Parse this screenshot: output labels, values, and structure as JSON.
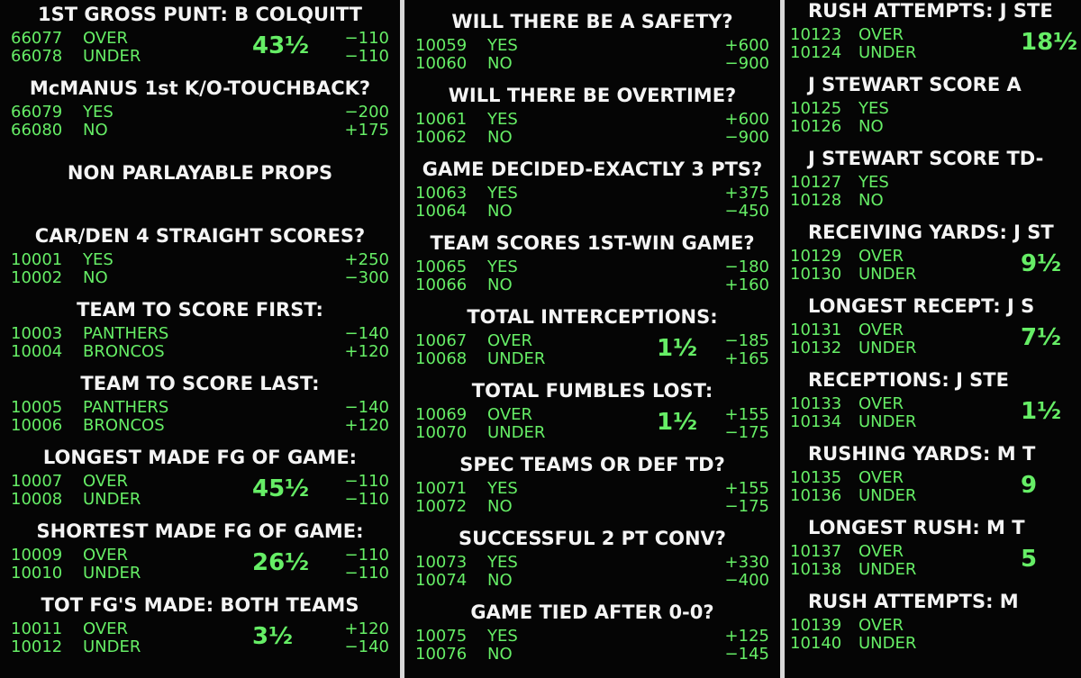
{
  "columns": [
    {
      "sections": [
        {
          "title": "1ST GROSS PUNT: B COLQUITT",
          "rows": [
            {
              "id": "66077",
              "label": "OVER",
              "line": "43½",
              "odds": "−110"
            },
            {
              "id": "66078",
              "label": "UNDER",
              "odds": "−110"
            }
          ]
        },
        {
          "title": "McMANUS 1st K/O-TOUCHBACK?",
          "rows": [
            {
              "id": "66079",
              "label": "YES",
              "odds": "−200"
            },
            {
              "id": "66080",
              "label": "NO",
              "odds": "+175"
            }
          ]
        },
        {
          "title": "NON PARLAYABLE PROPS"
        },
        {
          "title": "CAR/DEN 4 STRAIGHT SCORES?",
          "rows": [
            {
              "id": "10001",
              "label": "YES",
              "odds": "+250"
            },
            {
              "id": "10002",
              "label": "NO",
              "odds": "−300"
            }
          ]
        },
        {
          "title": "TEAM TO SCORE FIRST:",
          "rows": [
            {
              "id": "10003",
              "label": "PANTHERS",
              "odds": "−140"
            },
            {
              "id": "10004",
              "label": "BRONCOS",
              "odds": "+120"
            }
          ]
        },
        {
          "title": "TEAM TO SCORE LAST:",
          "rows": [
            {
              "id": "10005",
              "label": "PANTHERS",
              "odds": "−140"
            },
            {
              "id": "10006",
              "label": "BRONCOS",
              "odds": "+120"
            }
          ]
        },
        {
          "title": "LONGEST MADE FG OF GAME:",
          "rows": [
            {
              "id": "10007",
              "label": "OVER",
              "line": "45½",
              "odds": "−110"
            },
            {
              "id": "10008",
              "label": "UNDER",
              "odds": "−110"
            }
          ]
        },
        {
          "title": "SHORTEST MADE FG OF GAME:",
          "rows": [
            {
              "id": "10009",
              "label": "OVER",
              "line": "26½",
              "odds": "−110"
            },
            {
              "id": "10010",
              "label": "UNDER",
              "odds": "−110"
            }
          ]
        },
        {
          "title": "TOT FG'S MADE: BOTH TEAMS",
          "rows": [
            {
              "id": "10011",
              "label": "OVER",
              "line": "3½",
              "odds": "+120"
            },
            {
              "id": "10012",
              "label": "UNDER",
              "odds": "−140"
            }
          ]
        }
      ]
    },
    {
      "sections": [
        {
          "title": "WILL THERE BE A SAFETY?",
          "rows": [
            {
              "id": "10059",
              "label": "YES",
              "odds": "+600"
            },
            {
              "id": "10060",
              "label": "NO",
              "odds": "−900"
            }
          ]
        },
        {
          "title": "WILL THERE BE OVERTIME?",
          "rows": [
            {
              "id": "10061",
              "label": "YES",
              "odds": "+600"
            },
            {
              "id": "10062",
              "label": "NO",
              "odds": "−900"
            }
          ]
        },
        {
          "title": "GAME DECIDED-EXACTLY 3 PTS?",
          "rows": [
            {
              "id": "10063",
              "label": "YES",
              "odds": "+375"
            },
            {
              "id": "10064",
              "label": "NO",
              "odds": "−450"
            }
          ]
        },
        {
          "title": "TEAM SCORES 1ST-WIN GAME?",
          "rows": [
            {
              "id": "10065",
              "label": "YES",
              "odds": "−180"
            },
            {
              "id": "10066",
              "label": "NO",
              "odds": "+160"
            }
          ]
        },
        {
          "title": "TOTAL INTERCEPTIONS:",
          "rows": [
            {
              "id": "10067",
              "label": "OVER",
              "line": "1½",
              "odds": "−185"
            },
            {
              "id": "10068",
              "label": "UNDER",
              "odds": "+165"
            }
          ]
        },
        {
          "title": "TOTAL FUMBLES LOST:",
          "rows": [
            {
              "id": "10069",
              "label": "OVER",
              "line": "1½",
              "odds": "+155"
            },
            {
              "id": "10070",
              "label": "UNDER",
              "odds": "−175"
            }
          ]
        },
        {
          "title": "SPEC TEAMS OR DEF TD?",
          "rows": [
            {
              "id": "10071",
              "label": "YES",
              "odds": "+155"
            },
            {
              "id": "10072",
              "label": "NO",
              "odds": "−175"
            }
          ]
        },
        {
          "title": "SUCCESSFUL 2 PT CONV?",
          "rows": [
            {
              "id": "10073",
              "label": "YES",
              "odds": "+330"
            },
            {
              "id": "10074",
              "label": "NO",
              "odds": "−400"
            }
          ]
        },
        {
          "title": "GAME TIED AFTER 0-0?",
          "rows": [
            {
              "id": "10075",
              "label": "YES",
              "odds": "+125"
            },
            {
              "id": "10076",
              "label": "NO",
              "odds": "−145"
            }
          ]
        }
      ]
    },
    {
      "sections": [
        {
          "title": "RUSH ATTEMPTS: J STE",
          "rows": [
            {
              "id": "10123",
              "label": "OVER",
              "line": "18½"
            },
            {
              "id": "10124",
              "label": "UNDER"
            }
          ]
        },
        {
          "title": "J STEWART SCORE A",
          "rows": [
            {
              "id": "10125",
              "label": "YES"
            },
            {
              "id": "10126",
              "label": "NO"
            }
          ]
        },
        {
          "title": "J STEWART SCORE TD-",
          "rows": [
            {
              "id": "10127",
              "label": "YES"
            },
            {
              "id": "10128",
              "label": "NO"
            }
          ]
        },
        {
          "title": "RECEIVING YARDS: J ST",
          "rows": [
            {
              "id": "10129",
              "label": "OVER",
              "line": "9½"
            },
            {
              "id": "10130",
              "label": "UNDER"
            }
          ]
        },
        {
          "title": "LONGEST RECEPT: J S",
          "rows": [
            {
              "id": "10131",
              "label": "OVER",
              "line": "7½"
            },
            {
              "id": "10132",
              "label": "UNDER"
            }
          ]
        },
        {
          "title": "RECEPTIONS: J STE",
          "rows": [
            {
              "id": "10133",
              "label": "OVER",
              "line": "1½"
            },
            {
              "id": "10134",
              "label": "UNDER"
            }
          ]
        },
        {
          "title": "RUSHING YARDS: M T",
          "rows": [
            {
              "id": "10135",
              "label": "OVER",
              "line": "9"
            },
            {
              "id": "10136",
              "label": "UNDER"
            }
          ]
        },
        {
          "title": "LONGEST RUSH: M T",
          "rows": [
            {
              "id": "10137",
              "label": "OVER",
              "line": "5"
            },
            {
              "id": "10138",
              "label": "UNDER"
            }
          ]
        },
        {
          "title": "RUSH ATTEMPTS: M",
          "rows": [
            {
              "id": "10139",
              "label": "OVER"
            },
            {
              "id": "10140",
              "label": "UNDER"
            }
          ]
        }
      ]
    }
  ]
}
